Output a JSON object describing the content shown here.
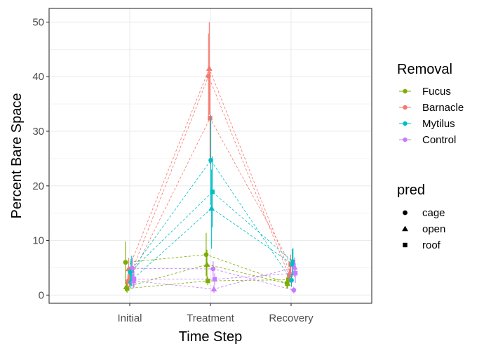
{
  "chart_data": {
    "type": "line",
    "title": "",
    "xlabel": "Time Step",
    "ylabel": "Percent Bare Space",
    "categories": [
      "Initial",
      "Treatment",
      "Recovery"
    ],
    "ylim": [
      -1.5,
      52.5
    ],
    "yticks": [
      0,
      10,
      20,
      30,
      40,
      50
    ],
    "grid": true,
    "legend_position": "right",
    "line_style": "dashed",
    "legends": [
      {
        "title": "Removal",
        "entries": [
          {
            "label": "Fucus",
            "color": "#7CAE00"
          },
          {
            "label": "Barnacle",
            "color": "#F8766D"
          },
          {
            "label": "Mytilus",
            "color": "#00BFC4"
          },
          {
            "label": "Control",
            "color": "#C77CFF"
          }
        ]
      },
      {
        "title": "pred",
        "entries": [
          {
            "label": "cage",
            "shape": "circle"
          },
          {
            "label": "open",
            "shape": "triangle"
          },
          {
            "label": "roof",
            "shape": "square"
          }
        ]
      }
    ],
    "series": [
      {
        "removal": "Fucus",
        "pred": "cage",
        "values": [
          6.0,
          7.4,
          2.2
        ],
        "lower": [
          2.0,
          3.5,
          1.2
        ],
        "upper": [
          9.8,
          11.4,
          3.2
        ]
      },
      {
        "removal": "Fucus",
        "pred": "open",
        "values": [
          1.5,
          5.6,
          2.1
        ],
        "lower": [
          0.6,
          3.0,
          1.2
        ],
        "upper": [
          2.5,
          8.3,
          3.0
        ]
      },
      {
        "removal": "Fucus",
        "pred": "roof",
        "values": [
          1.2,
          2.6,
          2.8
        ],
        "lower": [
          0.4,
          1.8,
          1.8
        ],
        "upper": [
          2.2,
          3.4,
          3.8
        ]
      },
      {
        "removal": "Barnacle",
        "pred": "cage",
        "values": [
          2.5,
          40.1,
          3.5
        ],
        "lower": [
          1.3,
          32.0,
          2.2
        ],
        "upper": [
          3.8,
          47.9,
          4.8
        ]
      },
      {
        "removal": "Barnacle",
        "pred": "open",
        "values": [
          4.8,
          41.5,
          4.1
        ],
        "lower": [
          2.8,
          33.0,
          2.3
        ],
        "upper": [
          6.8,
          50.0,
          6.0
        ]
      },
      {
        "removal": "Barnacle",
        "pred": "roof",
        "values": [
          2.6,
          32.4,
          5.6
        ],
        "lower": [
          1.5,
          24.0,
          3.8
        ],
        "upper": [
          3.8,
          40.8,
          7.4
        ]
      },
      {
        "removal": "Mytilus",
        "pred": "cage",
        "values": [
          4.2,
          24.7,
          2.7
        ],
        "lower": [
          1.8,
          16.5,
          1.5
        ],
        "upper": [
          6.6,
          32.9,
          3.9
        ]
      },
      {
        "removal": "Mytilus",
        "pred": "open",
        "values": [
          2.6,
          15.9,
          5.7
        ],
        "lower": [
          1.2,
          8.5,
          3.3
        ],
        "upper": [
          4.0,
          23.0,
          8.4
        ]
      },
      {
        "removal": "Mytilus",
        "pred": "roof",
        "values": [
          4.5,
          18.9,
          6.1
        ],
        "lower": [
          1.8,
          12.4,
          3.6
        ],
        "upper": [
          7.2,
          25.4,
          8.6
        ]
      },
      {
        "removal": "Control",
        "pred": "cage",
        "values": [
          4.9,
          4.8,
          0.9
        ],
        "lower": [
          3.0,
          3.4,
          0.3
        ],
        "upper": [
          6.8,
          6.2,
          1.5
        ]
      },
      {
        "removal": "Control",
        "pred": "open",
        "values": [
          2.6,
          1.1,
          5.1
        ],
        "lower": [
          1.3,
          0.4,
          3.3
        ],
        "upper": [
          3.9,
          1.8,
          6.9
        ]
      },
      {
        "removal": "Control",
        "pred": "roof",
        "values": [
          2.9,
          2.9,
          4.0
        ],
        "lower": [
          1.4,
          1.8,
          2.2
        ],
        "upper": [
          4.4,
          4.0,
          5.8
        ]
      }
    ]
  }
}
